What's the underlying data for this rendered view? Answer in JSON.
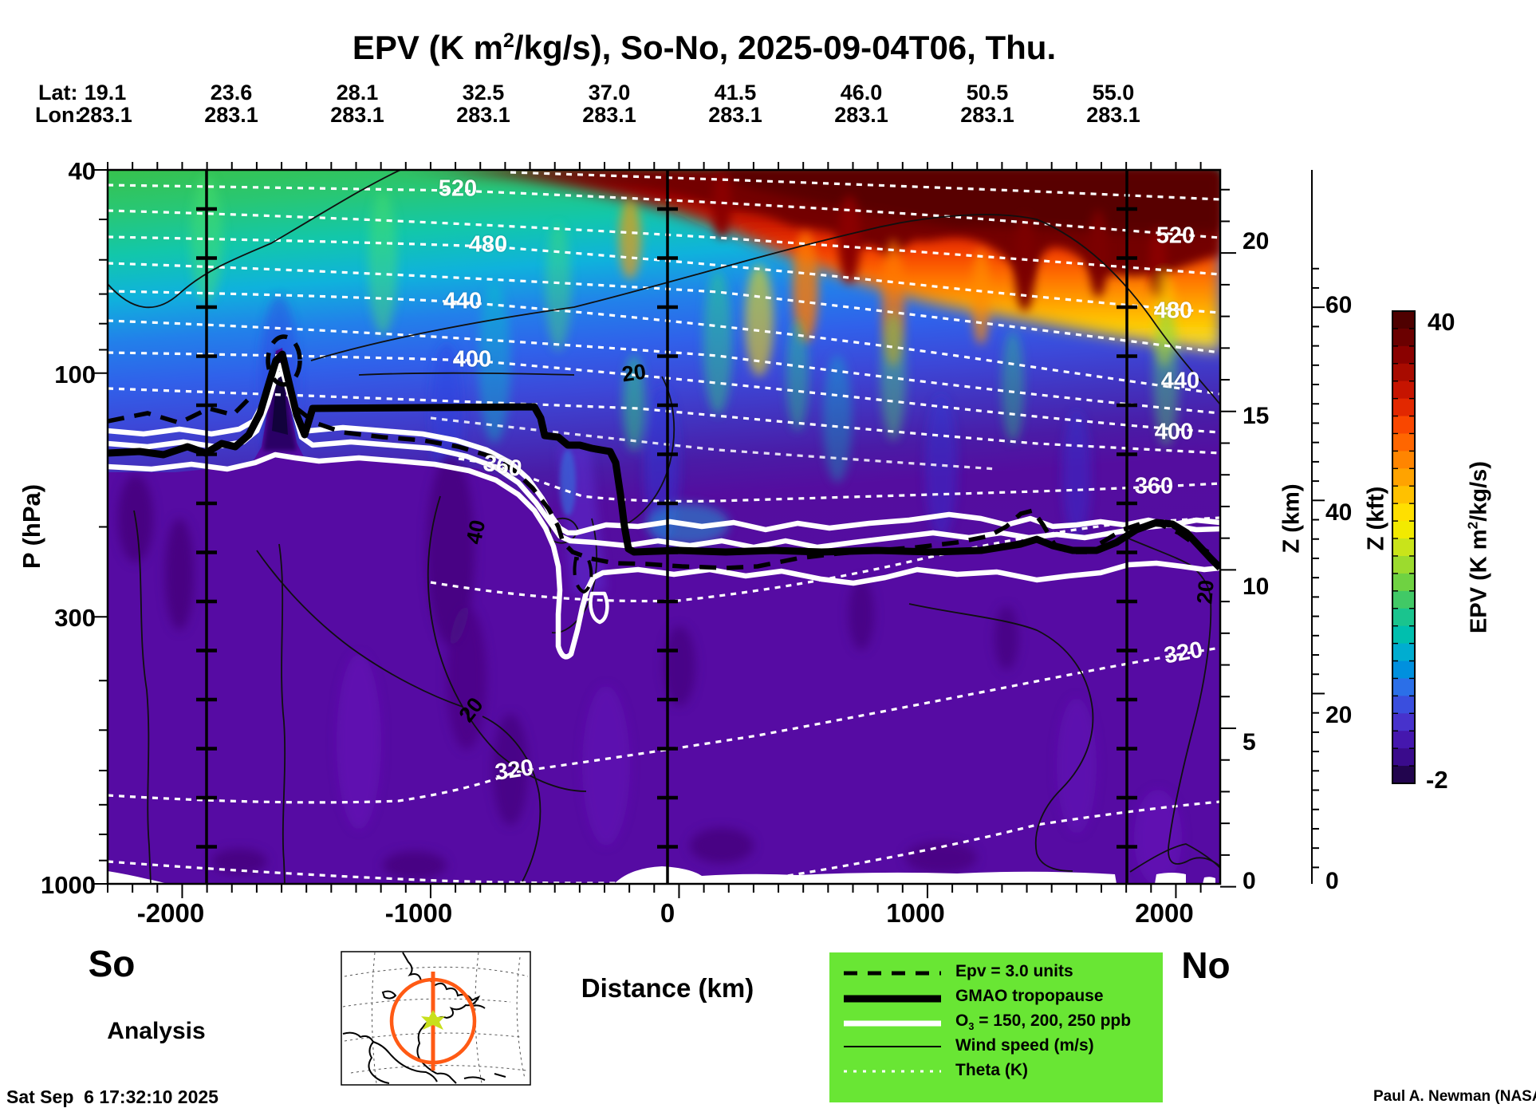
{
  "title": {
    "pre": "EPV (K m",
    "sup": "2",
    "post": "/kg/s), So-No, 2025-09-04T06, Thu."
  },
  "header": {
    "lat_label": "Lat:",
    "lon_label": "Lon:",
    "lat_values": [
      "19.1",
      "23.6",
      "28.1",
      "32.5",
      "37.0",
      "41.5",
      "46.0",
      "50.5",
      "55.0"
    ],
    "lon_values": [
      "283.1",
      "283.1",
      "283.1",
      "283.1",
      "283.1",
      "283.1",
      "283.1",
      "283.1",
      "283.1"
    ]
  },
  "axes": {
    "pressure": {
      "label": "P (hPa)",
      "ticks": [
        "40",
        "100",
        "300",
        "1000"
      ]
    },
    "distance": {
      "label": "Distance (km)",
      "ticks": [
        "-2000",
        "-1000",
        "0",
        "1000",
        "2000"
      ]
    },
    "z_km": {
      "label": "Z (km)",
      "ticks": [
        "20",
        "15",
        "10",
        "5",
        "0"
      ]
    },
    "z_kft": {
      "label": "Z (kft)",
      "ticks": [
        "60",
        "40",
        "20",
        "0"
      ]
    }
  },
  "endpoints": {
    "south": "So",
    "north": "No"
  },
  "annotations": {
    "analysis": "Analysis",
    "timestamp": "Sat Sep  6 17:32:10 2025",
    "credit": "Paul A. Newman (NASA"
  },
  "colorbar": {
    "max": "40",
    "min": "-2",
    "label_pre": "EPV (K m",
    "label_sup": "2",
    "label_post": "/kg/s)"
  },
  "legend": {
    "entries": [
      {
        "label": "Epv = 3.0 units"
      },
      {
        "label": "GMAO tropopause"
      },
      {
        "label_pre": "O",
        "label_sub": "3",
        "label_post": " = 150, 200, 250 ppb"
      },
      {
        "label": "Wind speed (m/s)"
      },
      {
        "label": "Theta (K)"
      }
    ]
  },
  "plot_labels": {
    "theta_left": [
      "520",
      "480",
      "440",
      "400",
      "360",
      "320"
    ],
    "theta_right": [
      "520",
      "480",
      "440",
      "400",
      "360",
      "320"
    ],
    "wind": {
      "upper20": "20",
      "jet40": "40",
      "lower20": "20",
      "right20": "20"
    }
  },
  "chart_data": {
    "type": "heatmap",
    "title": "EPV (K m2/kg/s), So-No, 2025-09-04T06, Thu.",
    "field": "Ertel potential vorticity meridional cross-section (filled contours) along longitude 283.1E from lat 19.1N (So) to 55.0N (No), GMAO analysis",
    "xlabel": "Distance (km)",
    "x_ticks": [
      -2000,
      -1000,
      0,
      1000,
      2000
    ],
    "x_range_km": [
      -2253,
      2225
    ],
    "top_axis": {
      "lat_ticks": [
        19.1,
        23.6,
        28.1,
        32.5,
        37.0,
        41.5,
        46.0,
        50.5,
        55.0
      ],
      "lon_ticks": [
        283.1,
        283.1,
        283.1,
        283.1,
        283.1,
        283.1,
        283.1,
        283.1,
        283.1
      ]
    },
    "ylabel": "P (hPa)",
    "y_pressure_ticks": [
      40,
      100,
      300,
      1000
    ],
    "y_scale": "log",
    "y_range_hpa": [
      40,
      1000
    ],
    "y2_km_ticks": [
      20,
      15,
      10,
      5,
      0
    ],
    "y3_kft_ticks": [
      60,
      40,
      20,
      0
    ],
    "colorbar": {
      "label": "EPV (K m2/kg/s)",
      "min": -2,
      "max": 40,
      "colors_top_to_bottom": [
        "#4f0000",
        "#6b0000",
        "#8a0100",
        "#a80b00",
        "#c61400",
        "#e22800",
        "#f94700",
        "#ff6600",
        "#ff8500",
        "#ffa300",
        "#ffc100",
        "#ffdf00",
        "#f2ea00",
        "#c9e41a",
        "#9cdb2e",
        "#6fd242",
        "#41c966",
        "#1ac48e",
        "#00bfae",
        "#00add0",
        "#0090de",
        "#2b6fe8",
        "#3a4ede",
        "#4732cc",
        "#4517ae",
        "#3a0b8c",
        "#22054e"
      ]
    },
    "contour_sets": [
      {
        "name": "Theta (K)",
        "style": "white dotted",
        "labeled_levels": [
          320,
          360,
          400,
          440,
          480,
          520
        ],
        "slope": "isentropes slope downward from south to north"
      },
      {
        "name": "Wind speed (m/s)",
        "style": "thin black solid",
        "labeled_levels": [
          20,
          40
        ]
      },
      {
        "name": "O3 (ppb)",
        "style": "thick white solid",
        "levels": [
          150,
          200,
          250
        ]
      },
      {
        "name": "Epv",
        "style": "black dashed",
        "levels": [
          3.0
        ],
        "units": "units"
      },
      {
        "name": "GMAO tropopause",
        "style": "thick black solid",
        "shape": "near 130 hPa south of the jump at x=-300 km, dropping to about 250 hPa north of it"
      }
    ],
    "legend_background": "#69e634",
    "inset_map": {
      "region": "North America",
      "circle_color": "#ff5a14",
      "track": "vertical orange meridian line",
      "marker": "yellow-green star at 37N 283.1E"
    }
  }
}
